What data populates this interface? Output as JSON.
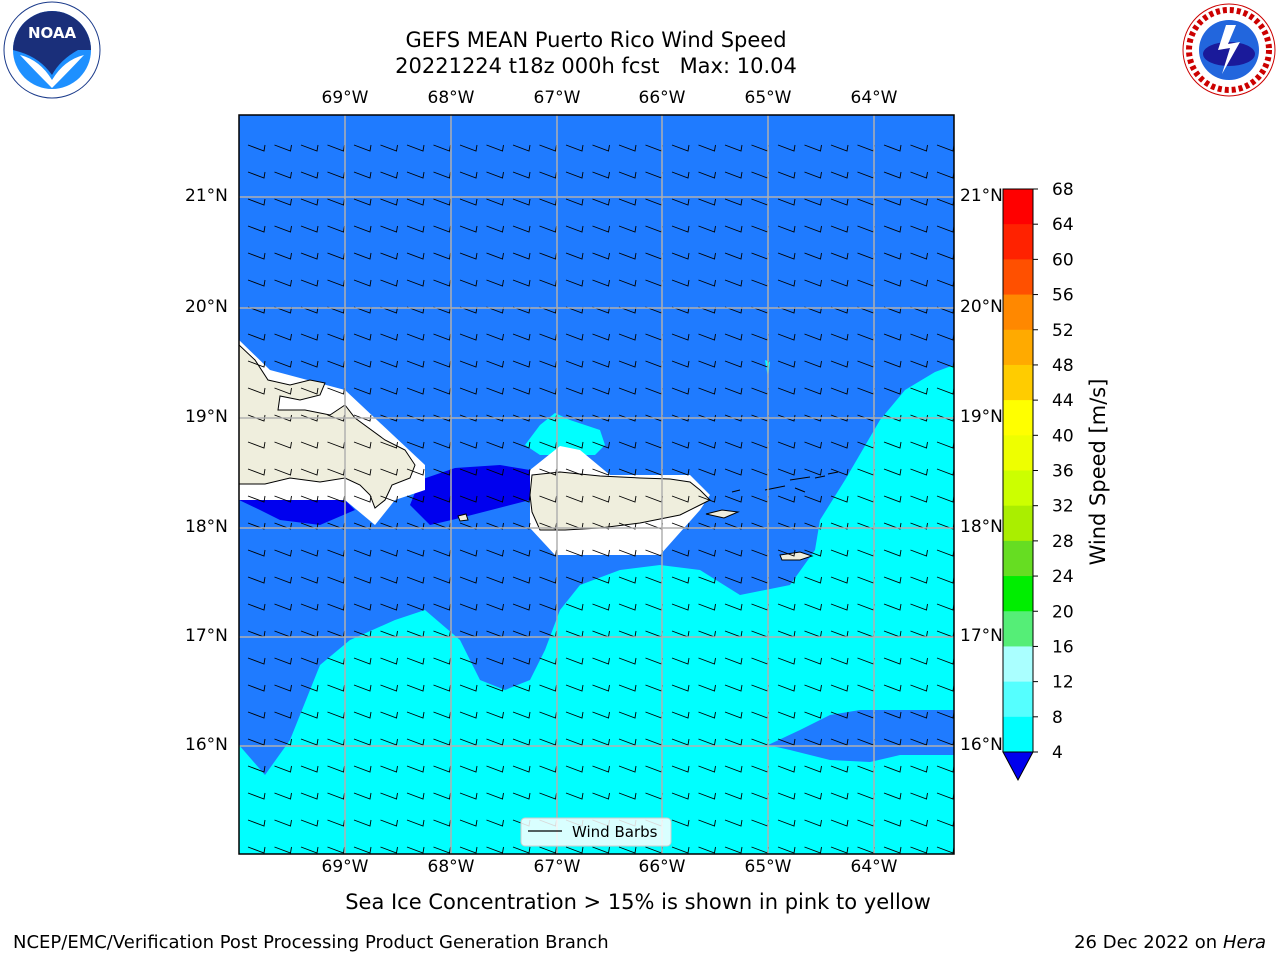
{
  "title": {
    "line1": "GEFS MEAN Puerto Rico Wind Speed",
    "line2": "20221224 t18z 000h fcst   Max: 10.04"
  },
  "map": {
    "lon_labels": [
      "69°W",
      "68°W",
      "67°W",
      "66°W",
      "65°W",
      "64°W"
    ],
    "lat_labels": [
      "21°N",
      "20°N",
      "19°N",
      "18°N",
      "17°N",
      "16°N"
    ],
    "legend_label": "Wind Barbs",
    "colors": {
      "ocean_4_8": "#1f7bff",
      "ocean_8_12": "#00ffff",
      "ocean_below_4": "#0000ee",
      "land": "#efeedd",
      "grid": "#b0b0b0"
    }
  },
  "colorbar": {
    "label": "Wind Speed [m/s]",
    "ticks": [
      "68",
      "64",
      "60",
      "56",
      "52",
      "48",
      "44",
      "40",
      "36",
      "32",
      "28",
      "24",
      "20",
      "16",
      "12",
      "8",
      "4"
    ],
    "colors": [
      "#ff0000",
      "#ff2200",
      "#ff5000",
      "#ff8800",
      "#ffaa00",
      "#ffcc00",
      "#ffff00",
      "#eeff00",
      "#ccff00",
      "#aaee00",
      "#66dd22",
      "#00ee00",
      "#55ee77",
      "#aaffff",
      "#55ffff",
      "#00ffff",
      "#1f7bff"
    ],
    "under_color": "#0000ee"
  },
  "caption": "Sea Ice Concentration > 15% is shown in pink to yellow",
  "footer": {
    "left": "NCEP/EMC/Verification Post Processing Product Generation Branch",
    "date": "26 Dec 2022 on",
    "machine": "Hera"
  },
  "logos": {
    "noaa_text": "NOAA",
    "noaa_ring": "NATIONAL OCEANIC AND ATMOSPHERIC ADMINISTRATION • U.S. DEPARTMENT OF COMMERCE",
    "nws_ring": "NATIONAL WEATHER SERVICE"
  }
}
